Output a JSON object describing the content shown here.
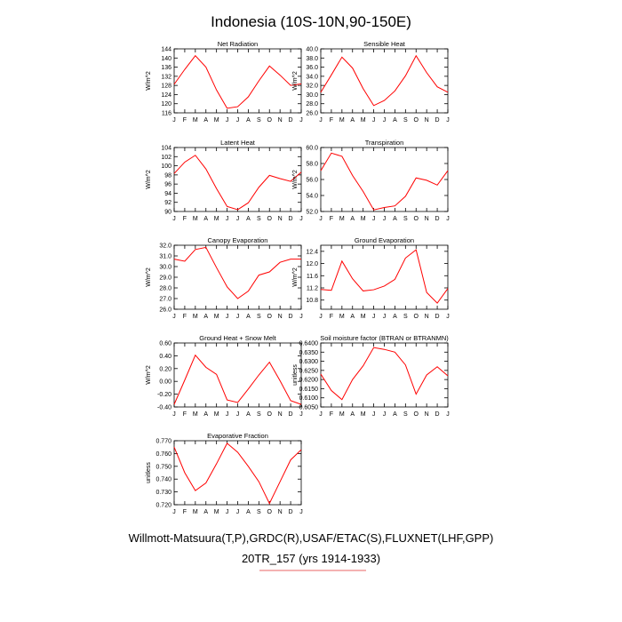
{
  "title": "Indonesia (10S-10N,90-150E)",
  "footer": {
    "line1": "Willmott-Matsuura(T,P),GRDC(R),USAF/ETAC(S),FLUXNET(LHF,GPP)",
    "line2": "20TR_157 (yrs 1914-1933)",
    "line2_underline_color": "#e03030"
  },
  "colors": {
    "series": "#ff0000",
    "axis": "#000000"
  },
  "months": [
    "J",
    "F",
    "M",
    "A",
    "M",
    "J",
    "J",
    "A",
    "S",
    "O",
    "N",
    "D",
    "J"
  ],
  "chart_data": [
    {
      "type": "line",
      "title": "Net Radiation",
      "ylabel": "W/m^2",
      "ylim": [
        116,
        144
      ],
      "yticks": [
        "144",
        "140",
        "136",
        "132",
        "128",
        "124",
        "120",
        "116"
      ],
      "values": [
        128.5,
        135,
        141,
        136,
        126,
        118,
        118.7,
        123,
        130,
        136.5,
        132.5,
        128,
        128.7
      ]
    },
    {
      "type": "line",
      "title": "Sensible Heat",
      "ylabel": "W/m^2",
      "ylim": [
        26,
        40
      ],
      "yticks": [
        "40.0",
        "38.0",
        "36.0",
        "34.0",
        "32.0",
        "30.0",
        "28.0",
        "26.0"
      ],
      "values": [
        30.5,
        34.3,
        38.2,
        35.8,
        31.3,
        27.6,
        28.7,
        30.8,
        34.1,
        38.5,
        34.8,
        31.7,
        30.5
      ]
    },
    {
      "type": "line",
      "title": "Latent Heat",
      "ylabel": "W/m^2",
      "ylim": [
        90,
        104
      ],
      "yticks": [
        "104",
        "102",
        "100",
        "98",
        "96",
        "94",
        "92",
        "90"
      ],
      "values": [
        98.3,
        100.8,
        102.3,
        99.3,
        95,
        91.1,
        90.4,
        91.9,
        95.3,
        97.9,
        97.2,
        96.6,
        98.6
      ]
    },
    {
      "type": "line",
      "title": "Transpiration",
      "ylabel": "W/m^2",
      "ylim": [
        52,
        60
      ],
      "yticks": [
        "60.0",
        "58.0",
        "56.0",
        "54.0",
        "52.0"
      ],
      "values": [
        57.1,
        59.3,
        58.9,
        56.5,
        54.5,
        52.2,
        52.5,
        52.7,
        53.9,
        56.2,
        55.9,
        55.3,
        57.1
      ]
    },
    {
      "type": "line",
      "title": "Canopy Evaporation",
      "ylabel": "W/m^2",
      "ylim": [
        26,
        32
      ],
      "yticks": [
        "32.0",
        "31.0",
        "30.0",
        "29.0",
        "28.0",
        "27.0",
        "26.0"
      ],
      "values": [
        30.7,
        30.5,
        31.6,
        31.8,
        29.9,
        28.1,
        27,
        27.7,
        29.2,
        29.5,
        30.4,
        30.7,
        30.7
      ]
    },
    {
      "type": "line",
      "title": "Ground Evaporation",
      "ylabel": "W/m^2",
      "ylim": [
        10.5,
        12.6
      ],
      "yticks": [
        "12.4",
        "12.0",
        "11.6",
        "11.2",
        "10.8"
      ],
      "values": [
        11.15,
        11.12,
        12.08,
        11.5,
        11.1,
        11.14,
        11.26,
        11.48,
        12.18,
        12.45,
        11.05,
        10.7,
        11.18
      ]
    },
    {
      "type": "line",
      "title": "Ground Heat + Snow Melt",
      "ylabel": "W/m^2",
      "ylim": [
        -0.4,
        0.6
      ],
      "yticks": [
        "0.60",
        "0.40",
        "0.20",
        "0.00",
        "-0.20",
        "-0.40"
      ],
      "values": [
        -0.36,
        0.02,
        0.41,
        0.22,
        0.11,
        -0.29,
        -0.33,
        -0.12,
        0.1,
        0.3,
        0.01,
        -0.3,
        -0.36
      ]
    },
    {
      "type": "line",
      "title": "Soil moisture factor (BTRAN or BTRANMN)",
      "ylabel": "unitless",
      "ylim": [
        0.605,
        0.64
      ],
      "yticks": [
        "0.6400",
        "0.6350",
        "0.6300",
        "0.6250",
        "0.6200",
        "0.6150",
        "0.6100",
        "0.6050"
      ],
      "values": [
        0.623,
        0.614,
        0.609,
        0.62,
        0.6275,
        0.6375,
        0.6365,
        0.635,
        0.628,
        0.612,
        0.6225,
        0.627,
        0.622
      ]
    },
    {
      "type": "line",
      "title": "Evaporative Fraction",
      "ylabel": "unitless",
      "ylim": [
        0.72,
        0.77
      ],
      "yticks": [
        "0.770",
        "0.760",
        "0.750",
        "0.740",
        "0.730",
        "0.720"
      ],
      "values": [
        0.765,
        0.745,
        0.731,
        0.737,
        0.752,
        0.768,
        0.761,
        0.75,
        0.738,
        0.721,
        0.738,
        0.755,
        0.763
      ]
    }
  ]
}
